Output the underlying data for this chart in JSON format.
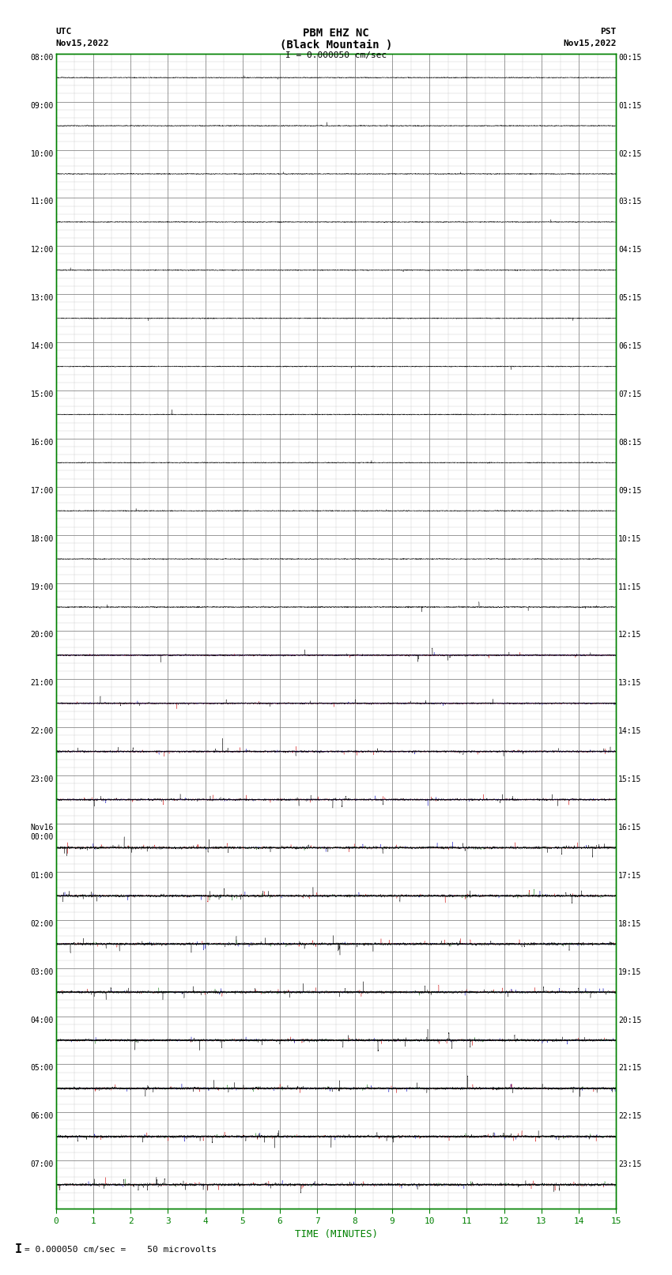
{
  "title_line1": "PBM EHZ NC",
  "title_line2": "(Black Mountain )",
  "title_line3": "I = 0.000050 cm/sec",
  "left_label_line1": "UTC",
  "left_label_line2": "Nov15,2022",
  "right_label_line1": "PST",
  "right_label_line2": "Nov15,2022",
  "bottom_label": "TIME (MINUTES)",
  "scale_text": "= 0.000050 cm/sec =    50 microvolts",
  "num_rows": 24,
  "x_ticks": [
    0,
    1,
    2,
    3,
    4,
    5,
    6,
    7,
    8,
    9,
    10,
    11,
    12,
    13,
    14,
    15
  ],
  "utc_labels": [
    "08:00",
    "09:00",
    "10:00",
    "11:00",
    "12:00",
    "13:00",
    "14:00",
    "15:00",
    "16:00",
    "17:00",
    "18:00",
    "19:00",
    "20:00",
    "21:00",
    "22:00",
    "23:00",
    "Nov16\n00:00",
    "01:00",
    "02:00",
    "03:00",
    "04:00",
    "05:00",
    "06:00",
    "07:00"
  ],
  "pst_labels": [
    "00:15",
    "01:15",
    "02:15",
    "03:15",
    "04:15",
    "05:15",
    "06:15",
    "07:15",
    "08:15",
    "09:15",
    "10:15",
    "11:15",
    "12:15",
    "13:15",
    "14:15",
    "15:15",
    "16:15",
    "17:15",
    "18:15",
    "19:15",
    "20:15",
    "21:15",
    "22:15",
    "23:15"
  ],
  "bg_color": "#ffffff",
  "major_grid_color": "#888888",
  "minor_grid_color": "#cccccc",
  "trace_black": "#000000",
  "trace_red": "#cc0000",
  "trace_blue": "#0000bb",
  "trace_green": "#007700",
  "axis_color": "#000000",
  "tick_color": "#008000",
  "font_family": "monospace"
}
